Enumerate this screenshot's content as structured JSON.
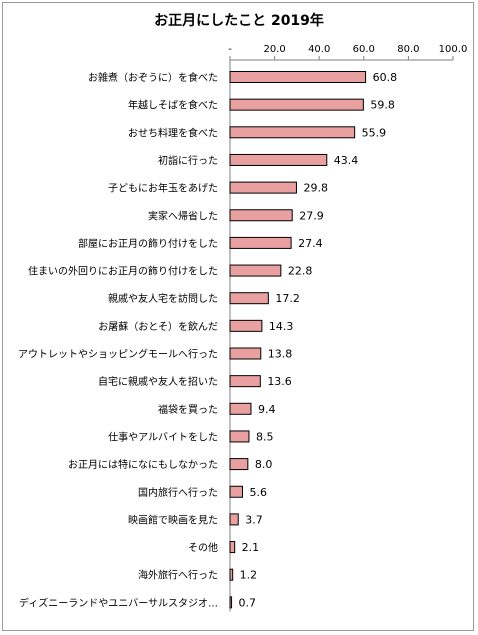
{
  "chart_data": {
    "type": "bar",
    "orientation": "horizontal",
    "title": "お正月にしたこと 2019年",
    "xlabel": "",
    "ylabel": "",
    "xlim": [
      0,
      100
    ],
    "x_ticks": [
      "-",
      "20.0",
      "40.0",
      "60.0",
      "80.0",
      "100.0"
    ],
    "x_axis_position": "top",
    "grid": false,
    "bar_color": "#e8a0a0",
    "bar_edge_color": "#000000",
    "categories": [
      "お雑煮（おぞうに）を食べた",
      "年越しそばを食べた",
      "おせち料理を食べた",
      "初詣に行った",
      "子どもにお年玉をあげた",
      "実家へ帰省した",
      "部屋にお正月の飾り付けをした",
      "住まいの外回りにお正月の飾り付けをした",
      "親戚や友人宅を訪問した",
      "お屠蘇（おとそ）を飲んだ",
      "アウトレットやショッピングモールへ行った",
      "自宅に親戚や友人を招いた",
      "福袋を買った",
      "仕事やアルバイトをした",
      "お正月には特になにもしなかった",
      "国内旅行へ行った",
      "映画館で映画を見た",
      "その他",
      "海外旅行へ行った",
      "ディズニーランドやユニバーサルスタジオ…"
    ],
    "values": [
      60.8,
      59.8,
      55.9,
      43.4,
      29.8,
      27.9,
      27.4,
      22.8,
      17.2,
      14.3,
      13.8,
      13.6,
      9.4,
      8.5,
      8.0,
      5.6,
      3.7,
      2.1,
      1.2,
      0.7
    ],
    "value_labels": [
      "60.8",
      "59.8",
      "55.9",
      "43.4",
      "29.8",
      "27.9",
      "27.4",
      "22.8",
      "17.2",
      "14.3",
      "13.8",
      "13.6",
      "9.4",
      "8.5",
      "8.0",
      "5.6",
      "3.7",
      "2.1",
      "1.2",
      "0.7"
    ]
  }
}
